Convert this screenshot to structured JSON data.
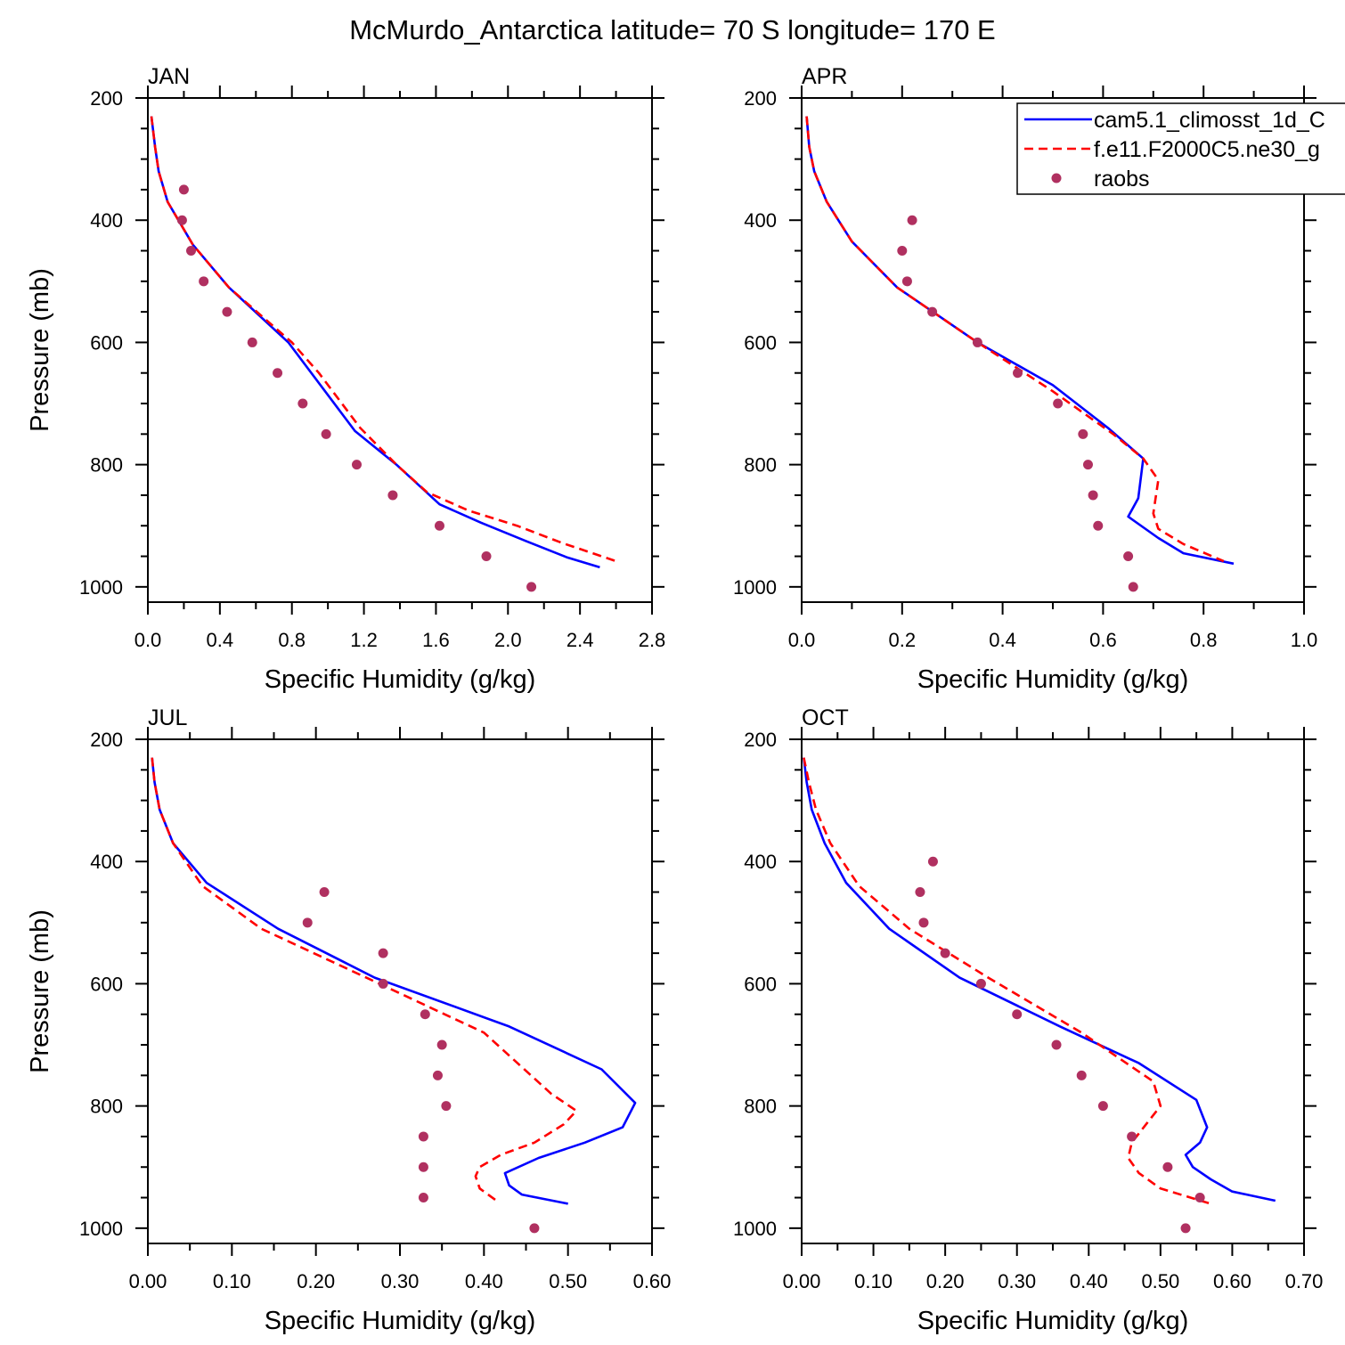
{
  "figure": {
    "title": "McMurdo_Antarctica  latitude= 70 S longitude= 170 E"
  },
  "legend": {
    "entries": [
      {
        "label": "cam5.1_climosst_1d_C",
        "color": "#0000ff",
        "style": "solid"
      },
      {
        "label": "f.e11.F2000C5.ne30_g",
        "color": "#ff0000",
        "style": "dashed"
      },
      {
        "label": "raobs",
        "color": "#b03060",
        "style": "dot"
      }
    ]
  },
  "colors": {
    "model1": "#0000ff",
    "model2": "#ff0000",
    "obs": "#b03060"
  },
  "chart_data": [
    {
      "type": "line",
      "panel_label": "JAN",
      "xlabel": "Specific Humidity (g/kg)",
      "ylabel": "Pressure (mb)",
      "xlim": [
        0,
        2.8
      ],
      "ylim": [
        200,
        1025
      ],
      "x_ticks": [
        "0.0",
        "0.4",
        "0.8",
        "1.2",
        "1.6",
        "2.0",
        "2.4",
        "2.8"
      ],
      "x_tick_values": [
        0,
        0.4,
        0.8,
        1.2,
        1.6,
        2.0,
        2.4,
        2.8
      ],
      "x_minor_step": 0.2,
      "y_ticks": [
        "200",
        "400",
        "600",
        "800",
        "1000"
      ],
      "y_tick_values": [
        200,
        400,
        600,
        800,
        1000
      ],
      "series": [
        {
          "name": "cam5.1_climosst_1d_C",
          "x": [
            0.02,
            0.04,
            0.06,
            0.11,
            0.25,
            0.45,
            0.78,
            1.15,
            1.38,
            1.62,
            1.85,
            2.1,
            2.33,
            2.51
          ],
          "y": [
            230,
            280,
            320,
            370,
            440,
            510,
            600,
            745,
            800,
            865,
            895,
            925,
            952,
            968
          ]
        },
        {
          "name": "f.e11.F2000C5.ne30_g",
          "x": [
            0.02,
            0.04,
            0.06,
            0.11,
            0.25,
            0.45,
            0.8,
            0.95,
            1.18,
            1.38,
            1.55,
            1.78,
            2.05,
            2.3,
            2.6
          ],
          "y": [
            230,
            280,
            320,
            370,
            440,
            510,
            600,
            650,
            740,
            800,
            845,
            875,
            900,
            928,
            958
          ]
        },
        {
          "name": "raobs",
          "x": [
            0.2,
            0.19,
            0.24,
            0.31,
            0.44,
            0.58,
            0.72,
            0.86,
            0.99,
            1.16,
            1.36,
            1.62,
            1.88,
            2.13
          ],
          "y": [
            350,
            400,
            450,
            500,
            550,
            600,
            650,
            700,
            750,
            800,
            850,
            900,
            950,
            1000
          ]
        }
      ]
    },
    {
      "type": "line",
      "panel_label": "APR",
      "xlabel": "Specific Humidity (g/kg)",
      "ylabel": "",
      "xlim": [
        0,
        1.0
      ],
      "ylim": [
        200,
        1025
      ],
      "x_ticks": [
        "0.0",
        "0.2",
        "0.4",
        "0.6",
        "0.8",
        "1.0"
      ],
      "x_tick_values": [
        0,
        0.2,
        0.4,
        0.6,
        0.8,
        1.0
      ],
      "x_minor_step": 0.1,
      "y_ticks": [
        "200",
        "400",
        "600",
        "800",
        "1000"
      ],
      "y_tick_values": [
        200,
        400,
        600,
        800,
        1000
      ],
      "series": [
        {
          "name": "cam5.1_climosst_1d_C",
          "x": [
            0.01,
            0.015,
            0.025,
            0.05,
            0.1,
            0.19,
            0.35,
            0.5,
            0.61,
            0.68,
            0.67,
            0.65,
            0.71,
            0.76,
            0.86
          ],
          "y": [
            230,
            280,
            320,
            370,
            435,
            510,
            600,
            670,
            740,
            790,
            855,
            885,
            920,
            945,
            962
          ]
        },
        {
          "name": "f.e11.F2000C5.ne30_g",
          "x": [
            0.01,
            0.015,
            0.025,
            0.05,
            0.1,
            0.19,
            0.35,
            0.5,
            0.62,
            0.68,
            0.71,
            0.7,
            0.71,
            0.76,
            0.84
          ],
          "y": [
            230,
            280,
            320,
            370,
            435,
            510,
            600,
            680,
            750,
            790,
            825,
            880,
            905,
            930,
            958
          ]
        },
        {
          "name": "raobs",
          "x": [
            0.22,
            0.2,
            0.21,
            0.26,
            0.35,
            0.43,
            0.51,
            0.56,
            0.57,
            0.58,
            0.59,
            0.65,
            0.66
          ],
          "y": [
            400,
            450,
            500,
            550,
            600,
            650,
            700,
            750,
            800,
            850,
            900,
            950,
            1000
          ]
        }
      ]
    },
    {
      "type": "line",
      "panel_label": "JUL",
      "xlabel": "Specific Humidity (g/kg)",
      "ylabel": "Pressure (mb)",
      "xlim": [
        0,
        0.6
      ],
      "ylim": [
        200,
        1025
      ],
      "x_ticks": [
        "0.00",
        "0.10",
        "0.20",
        "0.30",
        "0.40",
        "0.50",
        "0.60"
      ],
      "x_tick_values": [
        0,
        0.1,
        0.2,
        0.3,
        0.4,
        0.5,
        0.6
      ],
      "x_minor_step": 0.05,
      "y_ticks": [
        "200",
        "400",
        "600",
        "800",
        "1000"
      ],
      "y_tick_values": [
        200,
        400,
        600,
        800,
        1000
      ],
      "series": [
        {
          "name": "cam5.1_climosst_1d_C",
          "x": [
            0.005,
            0.008,
            0.014,
            0.03,
            0.07,
            0.155,
            0.27,
            0.43,
            0.54,
            0.58,
            0.565,
            0.52,
            0.465,
            0.425,
            0.43,
            0.445,
            0.5
          ],
          "y": [
            230,
            270,
            315,
            370,
            435,
            510,
            590,
            670,
            740,
            795,
            835,
            860,
            885,
            910,
            930,
            945,
            960
          ]
        },
        {
          "name": "f.e11.F2000C5.ne30_g",
          "x": [
            0.005,
            0.008,
            0.014,
            0.03,
            0.065,
            0.135,
            0.26,
            0.4,
            0.48,
            0.51,
            0.495,
            0.46,
            0.42,
            0.395,
            0.39,
            0.395,
            0.415
          ],
          "y": [
            230,
            270,
            315,
            370,
            440,
            510,
            590,
            680,
            780,
            808,
            830,
            860,
            880,
            900,
            915,
            935,
            955
          ]
        },
        {
          "name": "raobs",
          "x": [
            0.21,
            0.19,
            0.28,
            0.28,
            0.33,
            0.35,
            0.345,
            0.355,
            0.328,
            0.328,
            0.328,
            0.46
          ],
          "y": [
            450,
            500,
            550,
            600,
            650,
            700,
            750,
            800,
            850,
            900,
            950,
            1000
          ]
        }
      ]
    },
    {
      "type": "line",
      "panel_label": "OCT",
      "xlabel": "Specific Humidity (g/kg)",
      "ylabel": "",
      "xlim": [
        0,
        0.7
      ],
      "ylim": [
        200,
        1025
      ],
      "x_ticks": [
        "0.00",
        "0.10",
        "0.20",
        "0.30",
        "0.40",
        "0.50",
        "0.60",
        "0.70"
      ],
      "x_tick_values": [
        0,
        0.1,
        0.2,
        0.3,
        0.4,
        0.5,
        0.6,
        0.7
      ],
      "x_minor_step": 0.05,
      "y_ticks": [
        "200",
        "400",
        "600",
        "800",
        "1000"
      ],
      "y_tick_values": [
        200,
        400,
        600,
        800,
        1000
      ],
      "series": [
        {
          "name": "cam5.1_climosst_1d_C",
          "x": [
            0.003,
            0.007,
            0.014,
            0.032,
            0.062,
            0.122,
            0.22,
            0.36,
            0.47,
            0.55,
            0.565,
            0.555,
            0.535,
            0.545,
            0.57,
            0.6,
            0.66
          ],
          "y": [
            230,
            270,
            315,
            370,
            435,
            510,
            590,
            670,
            730,
            790,
            835,
            860,
            880,
            900,
            920,
            940,
            955
          ]
        },
        {
          "name": "f.e11.F2000C5.ne30_g",
          "x": [
            0.003,
            0.01,
            0.02,
            0.04,
            0.08,
            0.15,
            0.26,
            0.39,
            0.49,
            0.5,
            0.48,
            0.46,
            0.455,
            0.47,
            0.5,
            0.57
          ],
          "y": [
            230,
            270,
            315,
            370,
            440,
            510,
            590,
            680,
            760,
            800,
            830,
            860,
            885,
            910,
            935,
            960
          ]
        },
        {
          "name": "raobs",
          "x": [
            0.183,
            0.165,
            0.17,
            0.2,
            0.25,
            0.3,
            0.355,
            0.39,
            0.42,
            0.46,
            0.51,
            0.555,
            0.535
          ],
          "y": [
            400,
            450,
            500,
            550,
            600,
            650,
            700,
            750,
            800,
            850,
            900,
            950,
            1000
          ]
        }
      ]
    }
  ]
}
